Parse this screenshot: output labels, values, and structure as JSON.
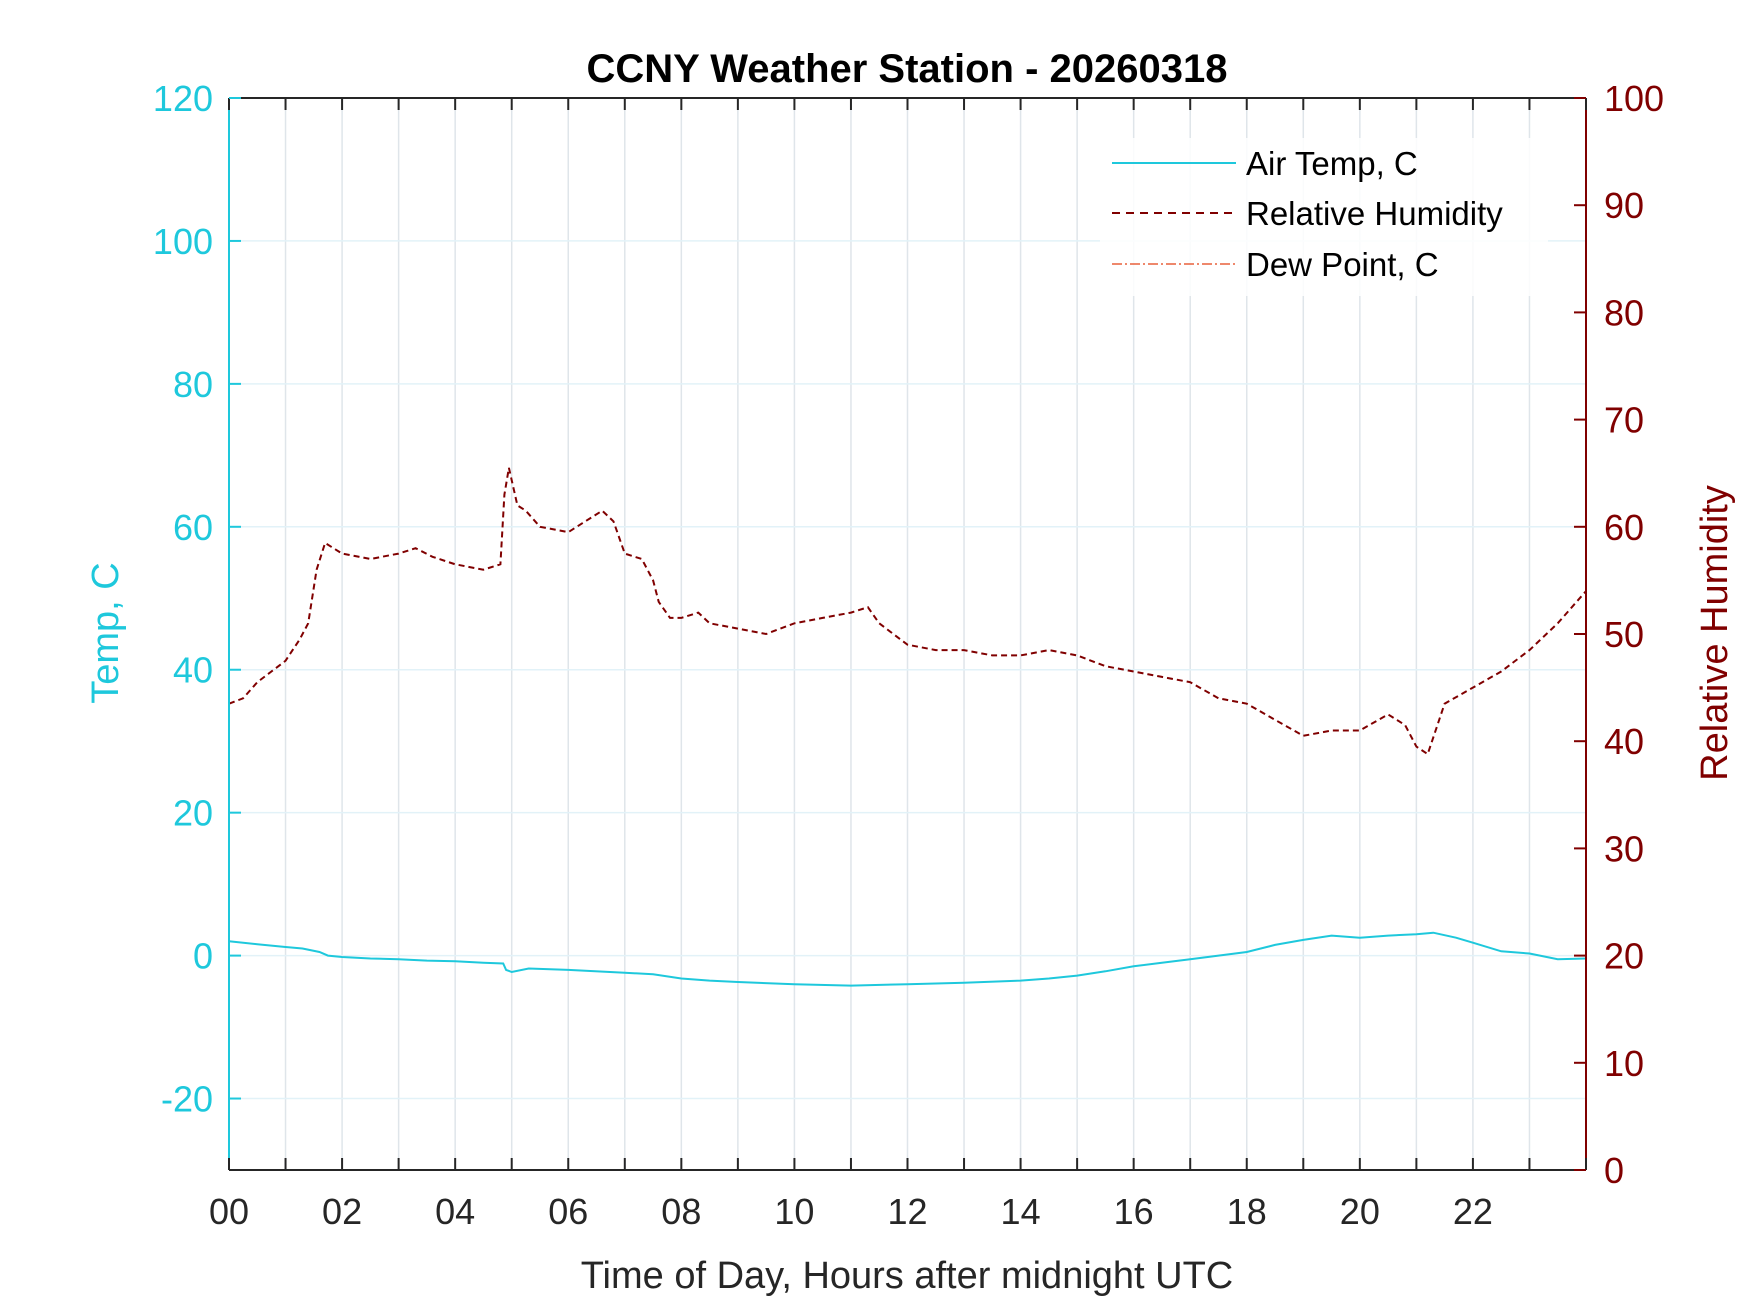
{
  "chart_data": {
    "type": "line",
    "title": "CCNY Weather Station - 20260318",
    "xlabel": "Time of Day, Hours after midnight UTC",
    "ylabel_left": "Temp, C",
    "ylabel_right": "Relative Humidity",
    "xlim": [
      0,
      24
    ],
    "ylim_left": [
      -30,
      120
    ],
    "ylim_right": [
      0,
      100
    ],
    "x_ticks": [
      0,
      2,
      4,
      6,
      8,
      10,
      12,
      14,
      16,
      18,
      20,
      22
    ],
    "x_tick_labels": [
      "00",
      "02",
      "04",
      "06",
      "08",
      "10",
      "12",
      "14",
      "16",
      "18",
      "20",
      "22"
    ],
    "y_left_ticks": [
      -20,
      0,
      20,
      40,
      60,
      80,
      100,
      120
    ],
    "y_left_tick_labels": [
      "-20",
      "0",
      "20",
      "40",
      "60",
      "80",
      "100",
      "120"
    ],
    "y_right_ticks": [
      0,
      10,
      20,
      30,
      40,
      50,
      60,
      70,
      80,
      90,
      100
    ],
    "y_right_tick_labels": [
      "0",
      "10",
      "20",
      "30",
      "40",
      "50",
      "60",
      "70",
      "80",
      "90",
      "100"
    ],
    "grid": true,
    "legend_position": "top-right",
    "colors": {
      "left_axis": "#1ec8dc",
      "right_axis": "#800000",
      "air_temp": "#1ec8dc",
      "humidity": "#800000",
      "dew_point": "#e8603c",
      "grid": "#dfe5ea"
    },
    "series": [
      {
        "name": "Air Temp, C",
        "axis": "left",
        "style": "solid",
        "x": [
          0,
          0.5,
          1.0,
          1.3,
          1.6,
          1.75,
          2.0,
          2.5,
          3.0,
          3.5,
          4.0,
          4.5,
          4.85,
          4.9,
          5.0,
          5.3,
          6.0,
          7.0,
          7.5,
          8.0,
          8.5,
          9.0,
          10.0,
          11.0,
          12.0,
          13.0,
          14.0,
          14.5,
          15.0,
          15.5,
          16.0,
          16.5,
          17.0,
          17.5,
          18.0,
          18.5,
          19.0,
          19.5,
          20.0,
          20.5,
          21.0,
          21.3,
          21.7,
          22.0,
          22.5,
          23.0,
          23.5,
          24.0
        ],
        "y": [
          2.0,
          1.6,
          1.2,
          1.0,
          0.5,
          0.0,
          -0.2,
          -0.4,
          -0.5,
          -0.7,
          -0.8,
          -1.0,
          -1.1,
          -2.0,
          -2.3,
          -1.8,
          -2.0,
          -2.4,
          -2.6,
          -3.2,
          -3.5,
          -3.7,
          -4.0,
          -4.2,
          -4.0,
          -3.8,
          -3.5,
          -3.2,
          -2.8,
          -2.2,
          -1.5,
          -1.0,
          -0.5,
          0.0,
          0.5,
          1.5,
          2.2,
          2.8,
          2.5,
          2.8,
          3.0,
          3.2,
          2.5,
          1.8,
          0.6,
          0.3,
          -0.5,
          -0.4
        ]
      },
      {
        "name": "Relative Humidity",
        "axis": "right",
        "style": "dashed",
        "x": [
          0,
          0.25,
          0.5,
          0.75,
          1.0,
          1.25,
          1.4,
          1.55,
          1.7,
          2.0,
          2.5,
          3.0,
          3.3,
          3.6,
          4.0,
          4.5,
          4.8,
          4.87,
          4.95,
          5.1,
          5.25,
          5.5,
          6.0,
          6.3,
          6.6,
          6.8,
          7.0,
          7.3,
          7.5,
          7.6,
          7.8,
          8.0,
          8.3,
          8.5,
          9.0,
          9.5,
          10.0,
          10.5,
          11.0,
          11.3,
          11.5,
          12.0,
          12.5,
          13.0,
          13.5,
          14.0,
          14.5,
          15.0,
          15.5,
          16.0,
          16.5,
          17.0,
          17.5,
          18.0,
          18.5,
          19.0,
          19.5,
          20.0,
          20.5,
          20.8,
          21.0,
          21.2,
          21.5,
          22.0,
          22.5,
          23.0,
          23.5,
          24.0
        ],
        "y": [
          43.5,
          44.0,
          45.5,
          46.5,
          47.5,
          49.5,
          51.0,
          56.0,
          58.5,
          57.5,
          57.0,
          57.5,
          58.0,
          57.2,
          56.5,
          56.0,
          56.5,
          63.0,
          65.5,
          62.0,
          61.5,
          60.0,
          59.5,
          60.5,
          61.5,
          60.5,
          57.5,
          57.0,
          55.0,
          53.0,
          51.5,
          51.5,
          52.0,
          51.0,
          50.5,
          50.0,
          51.0,
          51.5,
          52.0,
          52.5,
          51.0,
          49.0,
          48.5,
          48.5,
          48.0,
          48.0,
          48.5,
          48.0,
          47.0,
          46.5,
          46.0,
          45.5,
          44.0,
          43.5,
          42.0,
          40.5,
          41.0,
          41.0,
          42.5,
          41.5,
          39.5,
          38.8,
          43.5,
          45.0,
          46.5,
          48.5,
          51.0,
          54.0
        ]
      },
      {
        "name": "Dew Point, C",
        "axis": "left",
        "style": "dashdot",
        "x": [],
        "y": []
      }
    ]
  }
}
